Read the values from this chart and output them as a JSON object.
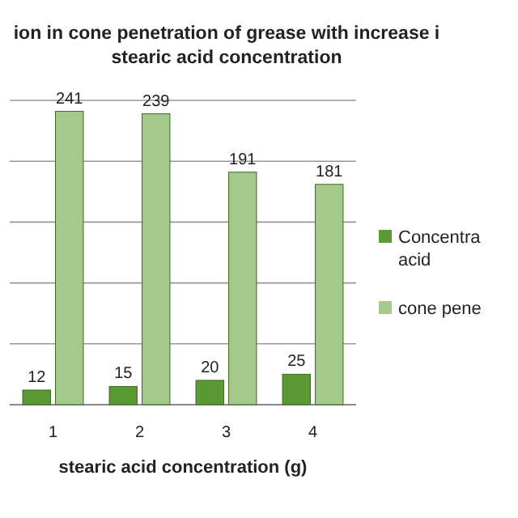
{
  "chart_data": {
    "type": "bar",
    "title": "ion in cone penetration of grease  with  increase i\nstearic acid concentration",
    "xlabel": "stearic acid concentration (g)",
    "categories": [
      "1",
      "2",
      "3",
      "4"
    ],
    "series": [
      {
        "name": "Concentra\nacid",
        "color": "#5a9a32",
        "values": [
          12,
          15,
          20,
          25
        ]
      },
      {
        "name": "cone pene",
        "color": "#a4c98a",
        "values": [
          241,
          239,
          191,
          181
        ]
      }
    ],
    "ylim": [
      0,
      250
    ],
    "yticks": [
      {
        "value": 0,
        "label": null
      },
      {
        "value": 50,
        "label": null
      },
      {
        "value": 100,
        "label": null
      },
      {
        "value": 150,
        "label": null
      },
      {
        "value": 200,
        "label": null
      },
      {
        "value": 250,
        "label": null
      }
    ],
    "tick_labels": "x",
    "grid": "y",
    "data_labels": true,
    "legend": "right"
  }
}
